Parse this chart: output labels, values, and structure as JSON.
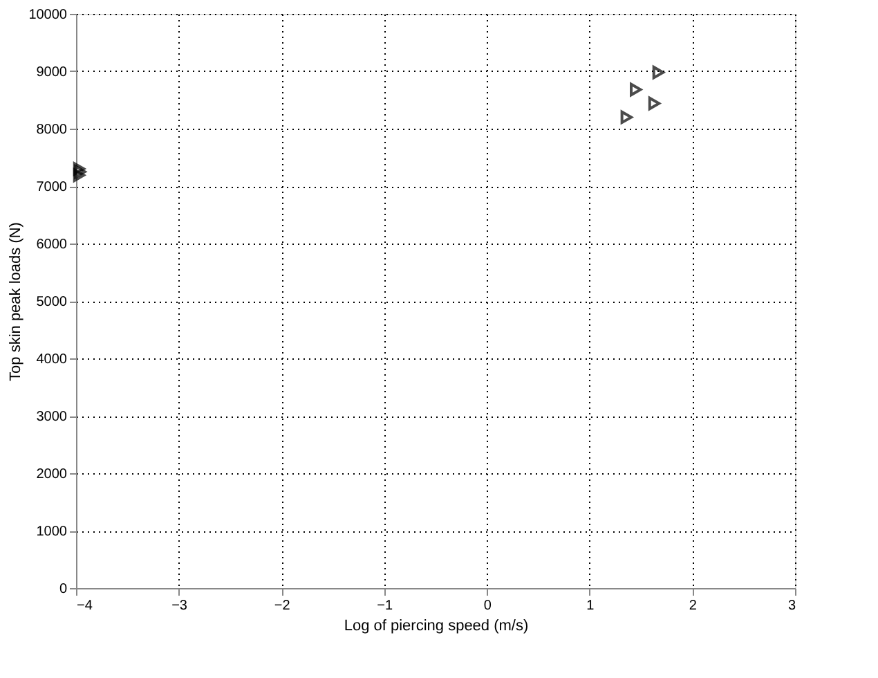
{
  "chart_data": {
    "type": "scatter",
    "xlabel": "Log of piercing speed (m/s)",
    "ylabel": "Top skin peak loads (N)",
    "x": [
      -3.97,
      -3.96,
      -3.97,
      1.67,
      1.45,
      1.63,
      1.36
    ],
    "series": [
      {
        "color": "#000000",
        "values": [
          7300,
          7250,
          7190,
          8980,
          8680,
          8440,
          8200
        ]
      }
    ],
    "xlim": [
      -4,
      3
    ],
    "xticks": [
      -4,
      -3,
      -2,
      -1,
      0,
      1,
      2,
      3
    ],
    "ylim": [
      0,
      10000
    ],
    "yticks": [
      0,
      1000,
      2000,
      3000,
      4000,
      5000,
      6000,
      7000,
      8000,
      9000,
      10000
    ],
    "grid": true,
    "marker": "triangle-right"
  }
}
